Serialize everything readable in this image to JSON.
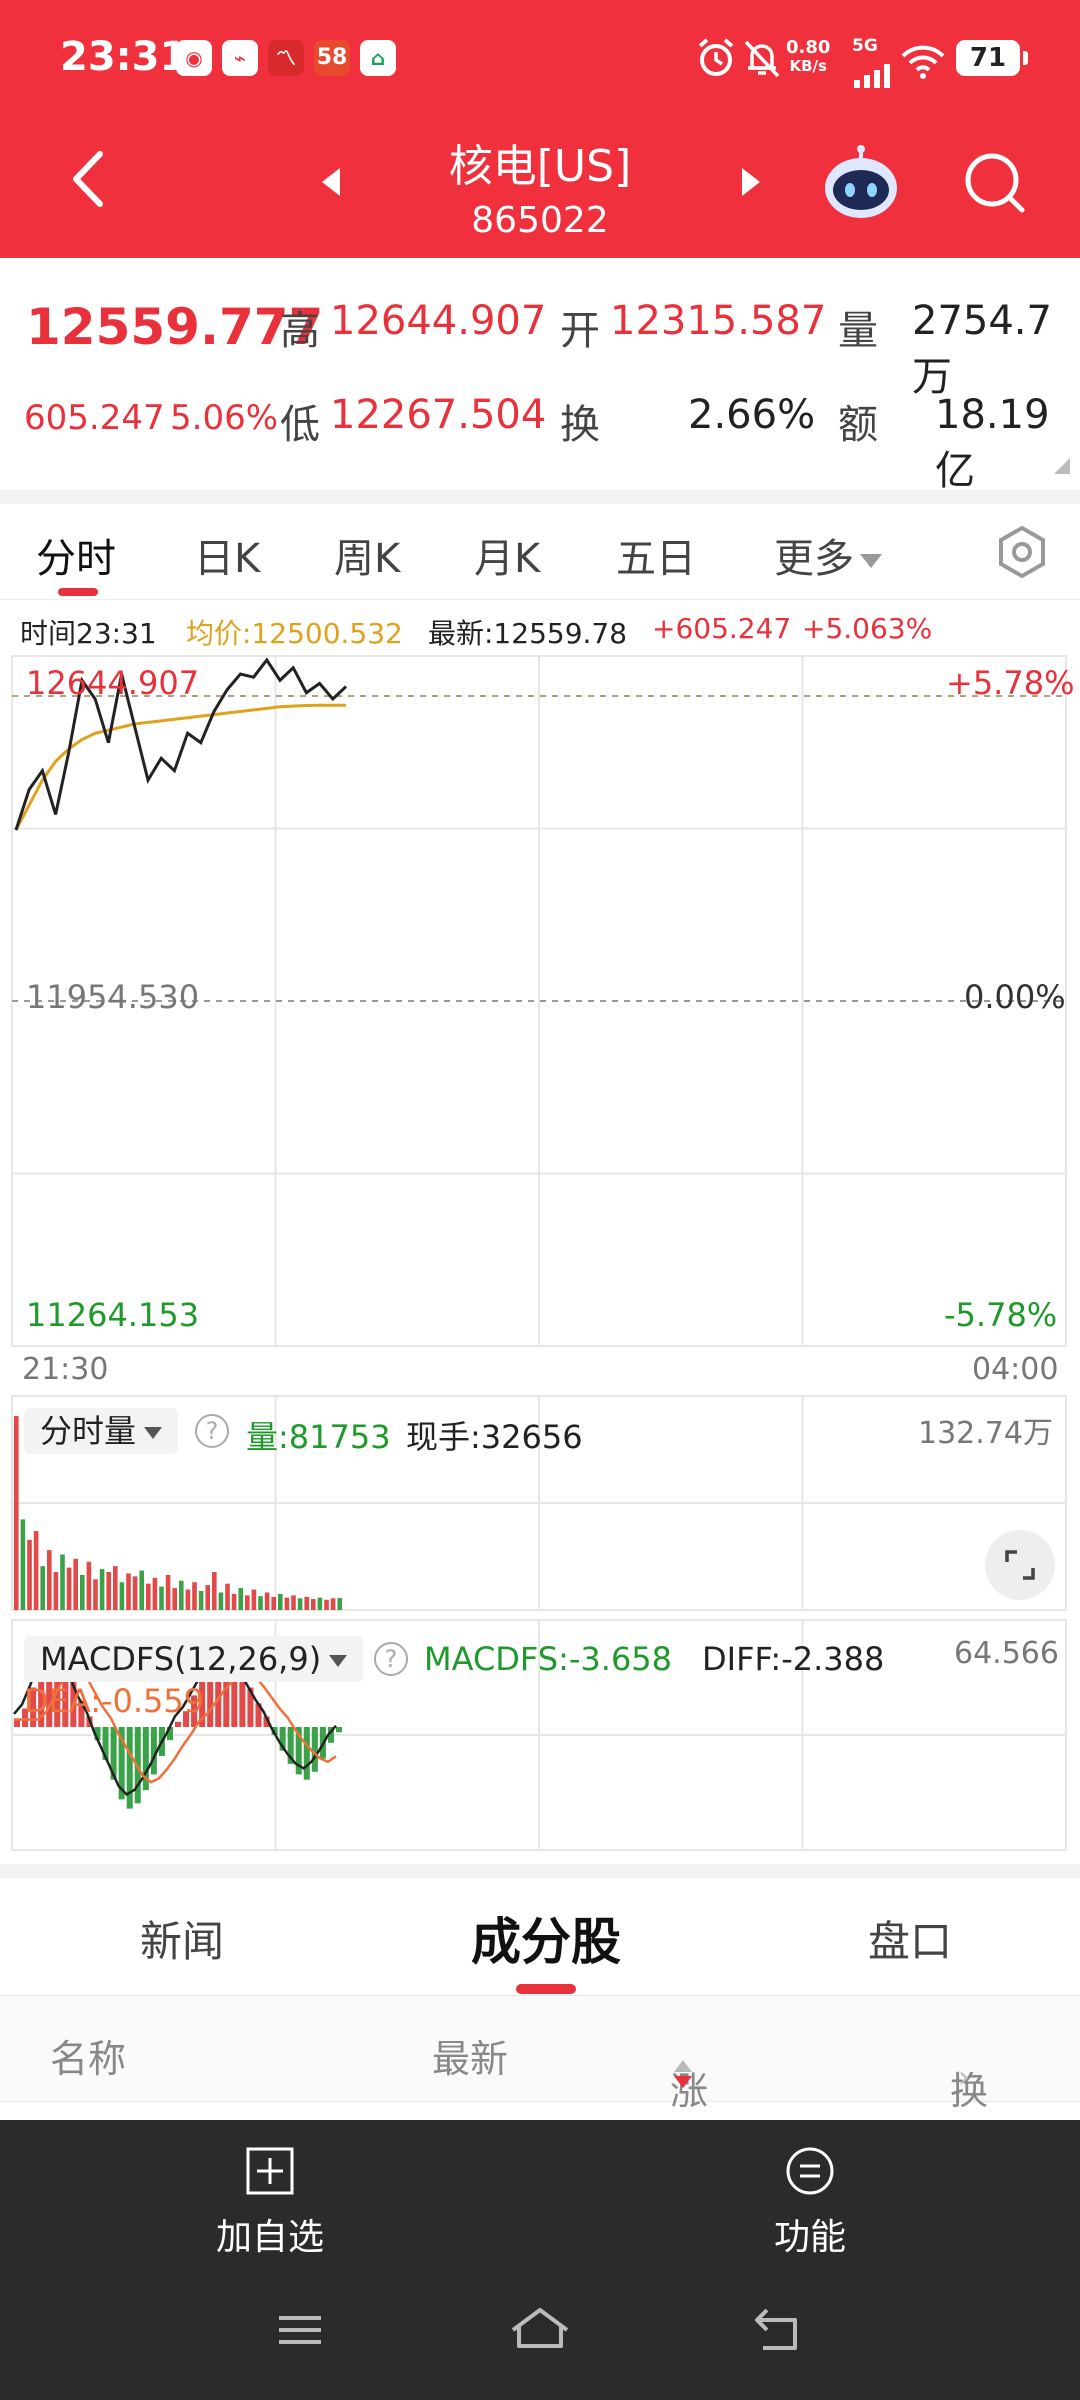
{
  "status_bar": {
    "time": "23:31",
    "apps": [
      "chat-bubble-icon",
      "map-icon",
      "trend-icon",
      "58",
      "house-icon"
    ],
    "net_speed_value": "0.80",
    "net_speed_unit": "KB/s",
    "network": "5G",
    "battery": "71"
  },
  "header": {
    "title": "核电[US]",
    "code": "865022"
  },
  "quote": {
    "price": "12559.777",
    "change": "605.247",
    "change_pct": "5.06%",
    "high_label": "高",
    "high": "12644.907",
    "low_label": "低",
    "low": "12267.504",
    "open_label": "开",
    "open": "12315.587",
    "turnover_label": "换",
    "turnover": "2.66%",
    "volume_label": "量",
    "volume": "2754.7万",
    "amount_label": "额",
    "amount": "18.19亿"
  },
  "chart_tabs": [
    "分时",
    "日K",
    "周K",
    "月K",
    "五日",
    "更多"
  ],
  "chart_info": {
    "time": "时间23:31",
    "avg": "均价:12500.532",
    "latest": "最新:12559.78",
    "change": "+605.247",
    "pct": "+5.063%"
  },
  "axis": {
    "top_value": "12644.907",
    "top_pct": "+5.78%",
    "mid_value": "11954.530",
    "mid_pct": "0.00%",
    "bottom_value": "11264.153",
    "bottom_pct": "-5.78%",
    "start_time": "21:30",
    "end_time": "04:00"
  },
  "volume_panel": {
    "selector": "分时量",
    "vol": "量:81753",
    "hand": "现手:32656",
    "max": "132.74万"
  },
  "macd_panel": {
    "selector": "MACDFS(12,26,9)",
    "macdfs": "MACDFS:-3.658",
    "diff": "DIFF:-2.388",
    "dea": "DEA:-0.559",
    "max": "64.566"
  },
  "chart_data": [
    {
      "type": "line",
      "series": [
        {
          "values": [
            12100,
            12230,
            12290,
            12150,
            12350,
            12580,
            12520,
            12380,
            12600,
            12430,
            12260,
            12330,
            12290,
            12410,
            12380,
            12480,
            12550,
            12600,
            12590,
            12645,
            12580,
            12620,
            12540,
            12570,
            12520,
            12560
          ]
        },
        {
          "values": [
            12100,
            12180,
            12260,
            12320,
            12360,
            12390,
            12410,
            12420,
            12430,
            12440,
            12445,
            12450,
            12455,
            12460,
            12465,
            12470,
            12475,
            12480,
            12485,
            12490,
            12495,
            12497,
            12499,
            12500,
            12500,
            12500
          ]
        }
      ],
      "ylim": [
        11264.153,
        12644.907
      ],
      "colors": {
        "price": "#222222",
        "avg": "#e0a11c"
      }
    },
    {
      "type": "bar",
      "values": [
        1327400,
        620000,
        480000,
        540000,
        300000,
        410000,
        260000,
        380000,
        290000,
        350000,
        240000,
        330000,
        210000,
        280000,
        260000,
        300000,
        190000,
        250000,
        230000,
        270000,
        180000,
        220000,
        160000,
        240000,
        150000,
        200000,
        140000,
        190000,
        130000,
        170000,
        260000,
        120000,
        180000,
        110000,
        150000,
        100000,
        140000,
        95000,
        120000,
        90000,
        110000,
        85000,
        100000,
        80000,
        90000,
        75000,
        85000,
        70000,
        80000,
        81753
      ],
      "ylim": [
        0,
        1327400
      ]
    },
    {
      "type": "bar",
      "values": [
        6,
        14,
        30,
        48,
        60,
        64,
        52,
        36,
        20,
        8,
        -10,
        -25,
        -40,
        -55,
        -62,
        -58,
        -48,
        -36,
        -22,
        -10,
        4,
        12,
        24,
        36,
        46,
        54,
        58,
        52,
        42,
        30,
        18,
        8,
        -6,
        -18,
        -28,
        -36,
        -40,
        -34,
        -24,
        -12,
        -4
      ],
      "ylim": [
        -64.566,
        64.566
      ]
    }
  ],
  "sub_tabs": [
    "新闻",
    "成分股",
    "盘口"
  ],
  "list_header": {
    "name": "名称",
    "latest": "最新",
    "change": "涨幅",
    "turnover": "换手"
  },
  "footer": {
    "add": "加自选",
    "func": "功能"
  }
}
